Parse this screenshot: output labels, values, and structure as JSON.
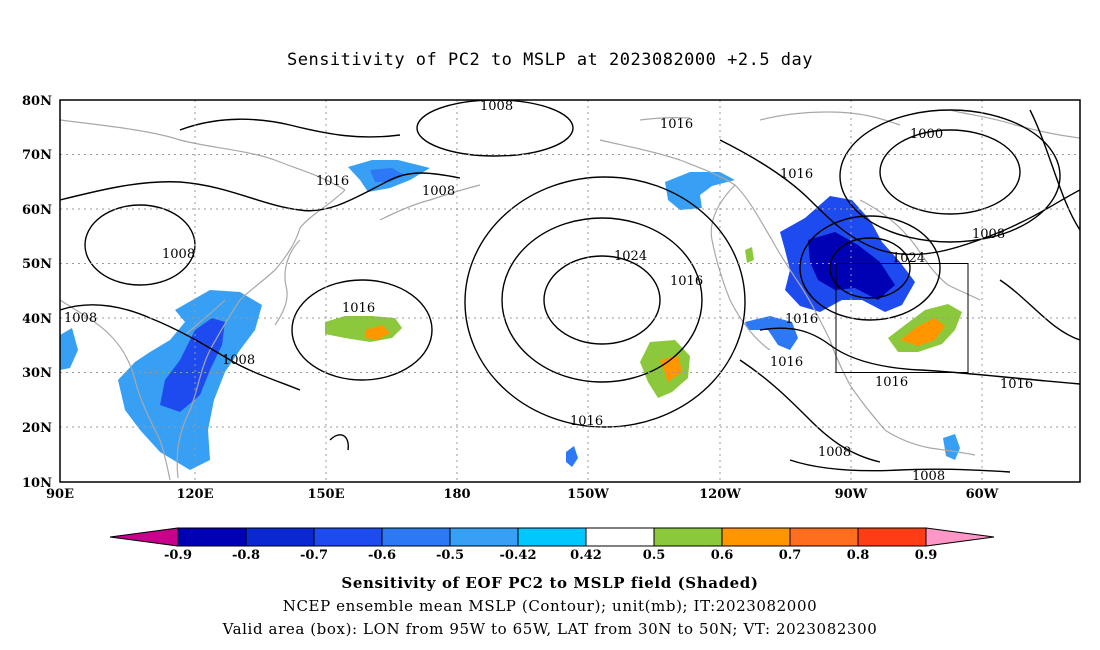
{
  "title": "Sensitivity of PC2 to MSLP at 2023082000 +2.5 day",
  "map": {
    "lat_labels": [
      "80N",
      "70N",
      "60N",
      "50N",
      "40N",
      "30N",
      "20N",
      "10N"
    ],
    "lon_labels": [
      "90E",
      "120E",
      "150E",
      "180",
      "150W",
      "120W",
      "90W",
      "60W"
    ],
    "contour_labels": [
      "1008",
      "1016",
      "1016",
      "1008",
      "1000",
      "1016",
      "1008",
      "1024",
      "1016",
      "1024",
      "1008",
      "1008",
      "1016",
      "1008",
      "1016",
      "1016",
      "1016",
      "1016",
      "1016",
      "1008",
      "1008"
    ],
    "valid_box": {
      "lon_range": [
        "95W",
        "65W"
      ],
      "lat_range": [
        "30N",
        "50N"
      ]
    }
  },
  "colorbar": {
    "labels": [
      "-0.9",
      "-0.8",
      "-0.7",
      "-0.6",
      "-0.5",
      "-0.42",
      "0.42",
      "0.5",
      "0.6",
      "0.7",
      "0.8",
      "0.9"
    ],
    "colors": [
      "#0000b4",
      "#0a28d2",
      "#1e4bf0",
      "#2d78f5",
      "#37a0f5",
      "#00c8ff",
      "#ffffff",
      "#8cc83c",
      "#ff9600",
      "#ff6e1e",
      "#ff3c14",
      "#ff0000"
    ],
    "low_arrow_color": "#c8008c",
    "high_arrow_color": "#ff96c8"
  },
  "footer": {
    "line1": "Sensitivity of EOF PC2 to MSLP field (Shaded)",
    "line2": "NCEP ensemble mean MSLP (Contour); unit(mb); IT:2023082000",
    "line3": "Valid area (box): LON from 95W to 65W, LAT from 30N to 50N; VT: 2023082300"
  }
}
